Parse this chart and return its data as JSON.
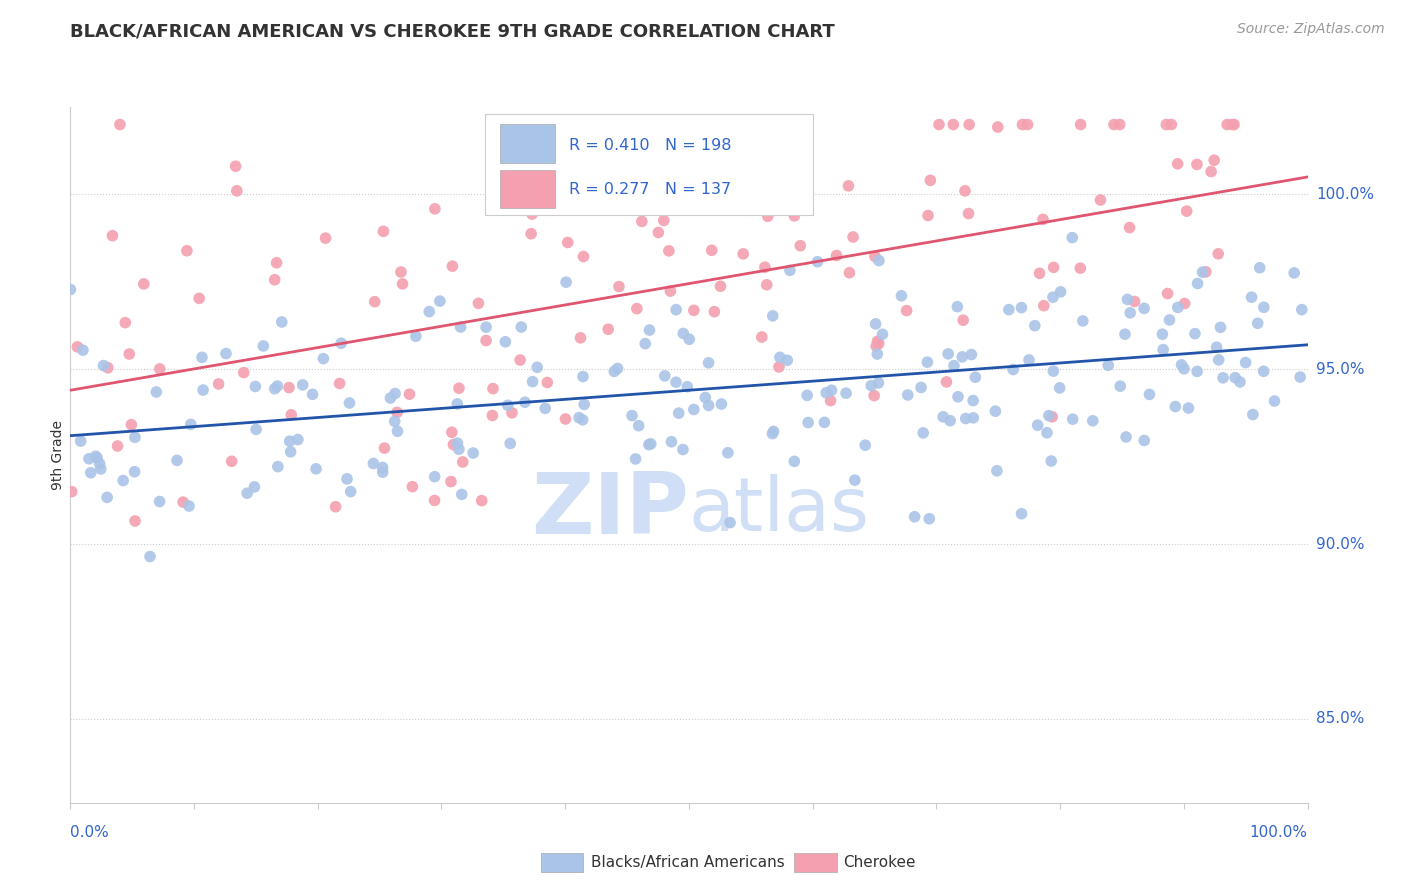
{
  "title": "BLACK/AFRICAN AMERICAN VS CHEROKEE 9TH GRADE CORRELATION CHART",
  "source": "Source: ZipAtlas.com",
  "ylabel": "9th Grade",
  "y_tick_labels": [
    "85.0%",
    "90.0%",
    "95.0%",
    "100.0%"
  ],
  "y_tick_values": [
    0.85,
    0.9,
    0.95,
    1.0
  ],
  "x_range": [
    0.0,
    1.0
  ],
  "y_range": [
    0.826,
    1.025
  ],
  "blue_R": 0.41,
  "blue_N": 198,
  "pink_R": 0.277,
  "pink_N": 137,
  "legend_labels": [
    "Blacks/African Americans",
    "Cherokee"
  ],
  "blue_color": "#aac4e8",
  "pink_color": "#f4a0b0",
  "blue_line_color": "#2255aa",
  "pink_line_color": "#e05570",
  "dot_size": 70,
  "blue_line_start_x": 0.0,
  "blue_line_start_y": 0.931,
  "blue_line_end_x": 1.0,
  "blue_line_end_y": 0.957,
  "pink_line_start_x": 0.0,
  "pink_line_start_y": 0.944,
  "pink_line_end_x": 1.0,
  "pink_line_end_y": 1.005,
  "watermark_zip": "ZIP",
  "watermark_atlas": "atlas",
  "watermark_color": "#d0dff5",
  "background_color": "#ffffff",
  "title_color": "#333333",
  "tick_label_color": "#3366cc",
  "source_color": "#999999",
  "grid_color": "#cccccc",
  "legend_R_N_color": "#3366cc"
}
